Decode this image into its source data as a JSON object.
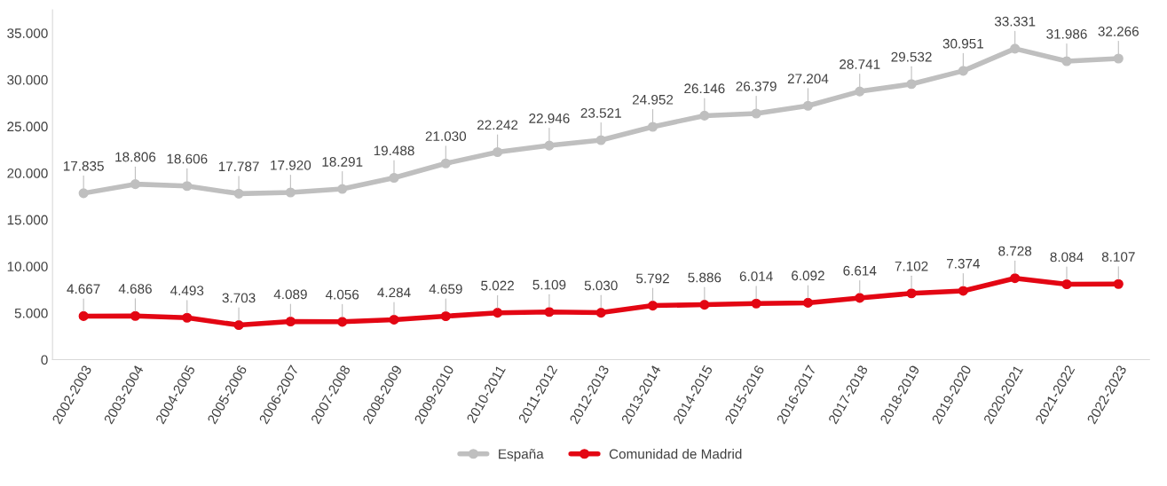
{
  "chart_data": {
    "type": "line",
    "categories": [
      "2002-2003",
      "2003-2004",
      "2004-2005",
      "2005-2006",
      "2006-2007",
      "2007-2008",
      "2008-2009",
      "2009-2010",
      "2010-2011",
      "2011-2012",
      "2012-2013",
      "2013-2014",
      "2014-2015",
      "2015-2016",
      "2016-2017",
      "2017-2018",
      "2018-2019",
      "2019-2020",
      "2020-2021",
      "2021-2022",
      "2022-2023"
    ],
    "series": [
      {
        "name": "España",
        "color": "#bfbfbf",
        "values": [
          17835,
          18806,
          18606,
          17787,
          17920,
          18291,
          19488,
          21030,
          22242,
          22946,
          23521,
          24952,
          26146,
          26379,
          27204,
          28741,
          29532,
          30951,
          33331,
          31986,
          32266
        ],
        "value_labels": [
          "17.835",
          "18.806",
          "18.606",
          "17.787",
          "17.920",
          "18.291",
          "19.488",
          "21.030",
          "22.242",
          "22.946",
          "23.521",
          "24.952",
          "26.146",
          "26.379",
          "27.204",
          "28.741",
          "29.532",
          "30.951",
          "33.331",
          "31.986",
          "32.266"
        ]
      },
      {
        "name": "Comunidad de Madrid",
        "color": "#e30613",
        "values": [
          4667,
          4686,
          4493,
          3703,
          4089,
          4056,
          4284,
          4659,
          5022,
          5109,
          5030,
          5792,
          5886,
          6014,
          6092,
          6614,
          7102,
          7374,
          8728,
          8084,
          8107
        ],
        "value_labels": [
          "4.667",
          "4.686",
          "4.493",
          "3.703",
          "4.089",
          "4.056",
          "4.284",
          "4.659",
          "5.022",
          "5.109",
          "5.030",
          "5.792",
          "5.886",
          "6.014",
          "6.092",
          "6.614",
          "7.102",
          "7.374",
          "8.728",
          "8.084",
          "8.107"
        ]
      }
    ],
    "ylim": [
      0,
      37500
    ],
    "yticks": [
      {
        "value": 0,
        "label": "0"
      },
      {
        "value": 5000,
        "label": "5.000"
      },
      {
        "value": 10000,
        "label": "10.000"
      },
      {
        "value": 15000,
        "label": "15.000"
      },
      {
        "value": 20000,
        "label": "20.000"
      },
      {
        "value": 25000,
        "label": "25.000"
      },
      {
        "value": 30000,
        "label": "30.000"
      },
      {
        "value": 35000,
        "label": "35.000"
      }
    ],
    "grid": false,
    "legend": "bottom",
    "marker": "circle",
    "line_style": "solid"
  }
}
